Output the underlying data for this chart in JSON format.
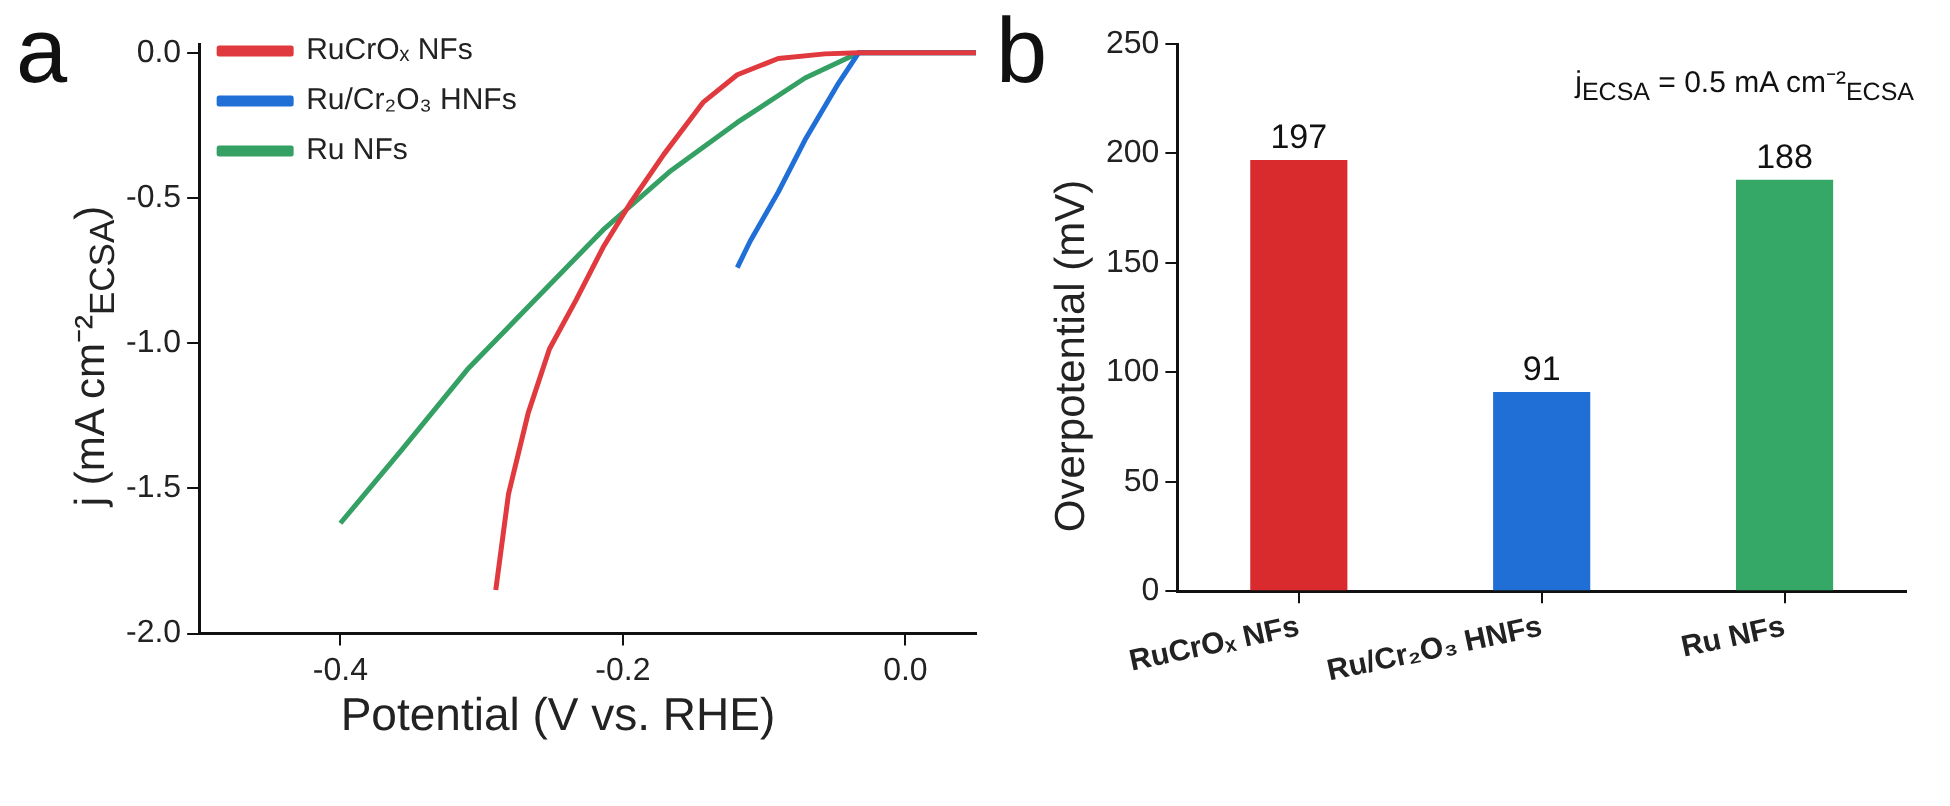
{
  "chart_data": [
    {
      "type": "line",
      "title": "a",
      "xlabel": "Potential (V vs. RHE)",
      "ylabel": "j (mA cm⁻²$_{ECSA}$)",
      "xlim": [
        -0.5,
        0.05
      ],
      "xticks": [
        -0.4,
        -0.2,
        {
          "value": 0,
          "label": "0.0"
        }
      ],
      "ylim": [
        -2,
        0.03
      ],
      "yticks": [
        {
          "value": -2,
          "label": "-2.0"
        },
        -1.5,
        {
          "value": -1,
          "label": "-1.0"
        },
        -0.5,
        {
          "value": 0,
          "label": "0.0"
        }
      ],
      "grid": false,
      "legend": "top left",
      "marker": "none",
      "line_style": "solid",
      "series": [
        {
          "name": "RuCrOₓ NFs",
          "color": "#e0393e",
          "x": [
            -0.29,
            -0.281,
            -0.267,
            -0.252,
            -0.233,
            -0.214,
            -0.195,
            -0.171,
            -0.143,
            -0.119,
            -0.09,
            -0.057,
            -0.033,
            0.05
          ],
          "values": [
            -1.85,
            -1.52,
            -1.24,
            -1.02,
            -0.85,
            -0.67,
            -0.52,
            -0.35,
            -0.17,
            -0.076,
            -0.02,
            -0.004,
            0,
            0
          ]
        },
        {
          "name": "Ru/Cr₂O₃ HNFs",
          "color": "#1f6fd6",
          "x": [
            -0.119,
            -0.11,
            -0.09,
            -0.071,
            -0.048,
            -0.033,
            0.05
          ],
          "values": [
            -0.74,
            -0.65,
            -0.48,
            -0.3,
            -0.11,
            0,
            0
          ]
        },
        {
          "name": "Ru NFs",
          "color": "#35a064",
          "x": [
            -0.4,
            -0.357,
            -0.31,
            -0.262,
            -0.214,
            -0.167,
            -0.119,
            -0.071,
            -0.033,
            0.05
          ],
          "values": [
            -1.62,
            -1.37,
            -1.09,
            -0.85,
            -0.61,
            -0.41,
            -0.24,
            -0.087,
            0,
            0
          ]
        }
      ]
    },
    {
      "type": "bar",
      "title": "b",
      "ylabel": "Overpotential (mV)",
      "categories": [
        "RuCrOₓ NFs",
        "Ru/Cr₂O₃ HNFs",
        "Ru NFs"
      ],
      "values": [
        197,
        91,
        188
      ],
      "colors": [
        "#d92b2e",
        "#1f6fd6",
        "#35a868"
      ],
      "data_labels": true,
      "ylim": [
        0,
        250
      ],
      "yticks": [
        0,
        50,
        100,
        150,
        200,
        250
      ],
      "grid": false,
      "legend": false,
      "annotations": [
        "j$_{ECSA}$ = 0.5 mA cm⁻²$_{ECSA}$"
      ]
    }
  ]
}
